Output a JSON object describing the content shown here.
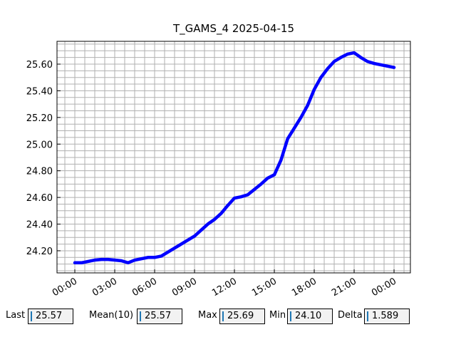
{
  "chart_data": {
    "type": "line",
    "title": "T_GAMS_4 2025-04-15",
    "x": [
      0,
      0.5,
      1,
      1.5,
      2,
      2.5,
      3,
      3.5,
      4,
      4.5,
      5,
      5.5,
      6,
      6.5,
      7,
      7.5,
      8,
      8.5,
      9,
      9.5,
      10,
      10.5,
      11,
      11.5,
      12,
      12.5,
      13,
      13.5,
      14,
      14.5,
      15,
      15.5,
      16,
      16.5,
      17,
      17.5,
      18,
      18.5,
      19,
      19.5,
      20,
      20.5,
      21,
      21.5,
      22,
      22.5,
      23,
      23.5,
      24
    ],
    "series": [
      {
        "color": "#0000ff",
        "values": [
          24.11,
          24.11,
          24.12,
          24.13,
          24.135,
          24.135,
          24.13,
          24.125,
          24.11,
          24.13,
          24.14,
          24.15,
          24.15,
          24.16,
          24.19,
          24.22,
          24.25,
          24.28,
          24.31,
          24.355,
          24.4,
          24.435,
          24.48,
          24.54,
          24.595,
          24.605,
          24.62,
          24.66,
          24.7,
          24.745,
          24.77,
          24.88,
          25.04,
          25.12,
          25.2,
          25.29,
          25.41,
          25.5,
          25.565,
          25.62,
          25.65,
          25.675,
          25.685,
          25.65,
          25.62,
          25.605,
          25.595,
          25.585,
          25.575
        ]
      }
    ],
    "xlim": [
      -1.34,
      25.23
    ],
    "ylim": [
      24.034,
      25.771
    ],
    "xticks": [
      {
        "value": 0,
        "label": "00:00"
      },
      {
        "value": 3,
        "label": "03:00"
      },
      {
        "value": 6,
        "label": "06:00"
      },
      {
        "value": 9,
        "label": "09:00"
      },
      {
        "value": 12,
        "label": "12:00"
      },
      {
        "value": 15,
        "label": "15:00"
      },
      {
        "value": 18,
        "label": "18:00"
      },
      {
        "value": 21,
        "label": "21:00"
      },
      {
        "value": 24,
        "label": "00:00"
      }
    ],
    "yticks": [
      {
        "value": 24.2,
        "label": "24.20"
      },
      {
        "value": 24.4,
        "label": "24.40"
      },
      {
        "value": 24.6,
        "label": "24.60"
      },
      {
        "value": 24.8,
        "label": "24.80"
      },
      {
        "value": 25.0,
        "label": "25.00"
      },
      {
        "value": 25.2,
        "label": "25.20"
      },
      {
        "value": 25.4,
        "label": "25.40"
      },
      {
        "value": 25.6,
        "label": "25.60"
      }
    ],
    "xminorticks": [
      -0.75,
      0.75,
      1.5,
      2.25,
      3.75,
      4.5,
      5.25,
      6.75,
      7.5,
      8.25,
      9.75,
      10.5,
      11.25,
      12.75,
      13.5,
      14.25,
      15.75,
      16.5,
      17.25,
      18.75,
      19.5,
      20.25,
      21.75,
      22.5,
      23.25,
      24.75
    ],
    "yminorticks": [
      24.05,
      24.1,
      24.15,
      24.25,
      24.3,
      24.35,
      24.45,
      24.5,
      24.55,
      24.65,
      24.7,
      24.75,
      24.85,
      24.9,
      24.95,
      25.05,
      25.1,
      25.15,
      25.25,
      25.3,
      25.35,
      25.45,
      25.5,
      25.55,
      25.65,
      25.7,
      25.75
    ],
    "grid": true
  },
  "stats": [
    {
      "label": "Last",
      "value": "25.57"
    },
    {
      "label": "Mean(10)",
      "value": "25.57"
    },
    {
      "label": "Max",
      "value": "25.69"
    },
    {
      "label": "Min",
      "value": "24.10"
    },
    {
      "label": "Delta",
      "value": "1.589"
    }
  ]
}
